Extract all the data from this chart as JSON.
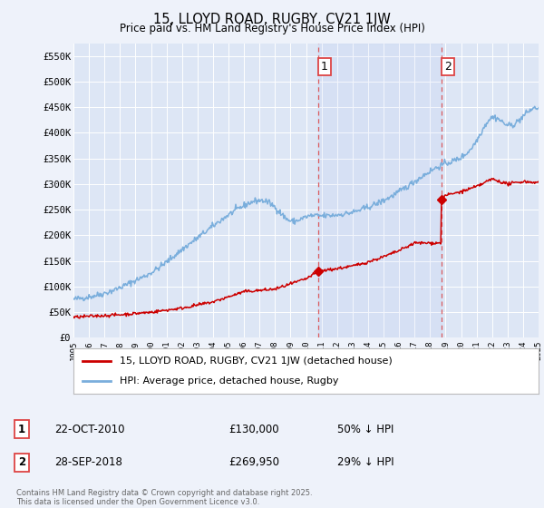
{
  "title": "15, LLOYD ROAD, RUGBY, CV21 1JW",
  "subtitle": "Price paid vs. HM Land Registry's House Price Index (HPI)",
  "background_color": "#eef2fa",
  "plot_bg_color": "#dde6f5",
  "grid_color": "#ffffff",
  "ylim": [
    0,
    575000
  ],
  "yticks": [
    0,
    50000,
    100000,
    150000,
    200000,
    250000,
    300000,
    350000,
    400000,
    450000,
    500000,
    550000
  ],
  "ytick_labels": [
    "£0",
    "£50K",
    "£100K",
    "£150K",
    "£200K",
    "£250K",
    "£300K",
    "£350K",
    "£400K",
    "£450K",
    "£500K",
    "£550K"
  ],
  "xmin_year": 1995,
  "xmax_year": 2025,
  "xticks": [
    1995,
    1996,
    1997,
    1998,
    1999,
    2000,
    2001,
    2002,
    2003,
    2004,
    2005,
    2006,
    2007,
    2008,
    2009,
    2010,
    2011,
    2012,
    2013,
    2014,
    2015,
    2016,
    2017,
    2018,
    2019,
    2020,
    2021,
    2022,
    2023,
    2024,
    2025
  ],
  "event1_x": 2010.8,
  "event1_y": 130000,
  "event1_label": "1",
  "event1_date": "22-OCT-2010",
  "event1_price": "£130,000",
  "event1_hpi": "50% ↓ HPI",
  "event2_x": 2018.75,
  "event2_y": 269950,
  "event2_label": "2",
  "event2_date": "28-SEP-2018",
  "event2_price": "£269,950",
  "event2_hpi": "29% ↓ HPI",
  "hpi_color": "#7aaedc",
  "price_color": "#cc0000",
  "dashed_color": "#dd4444",
  "legend_label_price": "15, LLOYD ROAD, RUGBY, CV21 1JW (detached house)",
  "legend_label_hpi": "HPI: Average price, detached house, Rugby",
  "footnote": "Contains HM Land Registry data © Crown copyright and database right 2025.\nThis data is licensed under the Open Government Licence v3.0."
}
